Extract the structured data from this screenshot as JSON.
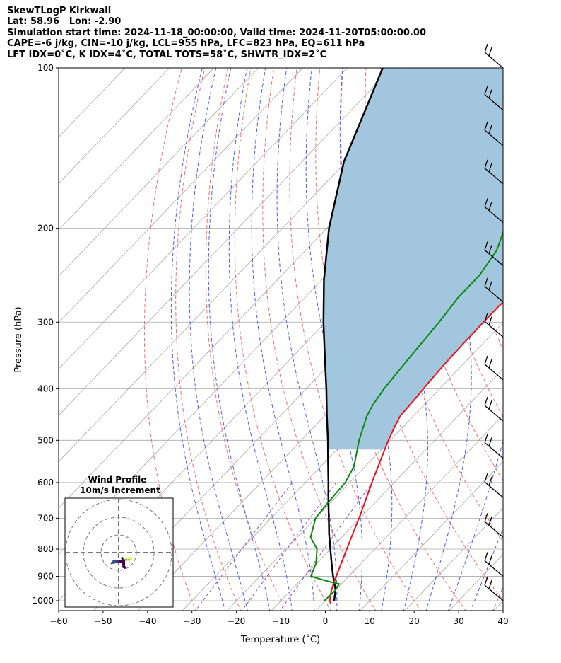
{
  "header": {
    "line1": "SkewTLogP Kirkwall",
    "line2": "Lat: 58.96   Lon: -2.90",
    "line3": "Simulation start time: 2024-11-18_00:00:00, Valid time: 2024-11-20T05:00:00.00",
    "line4": "CAPE=-6 j/kg, CIN=-10 j/kg, LCL=955 hPa, LFC=823 hPa, EQ=611 hPa",
    "line5": "LFT IDX=0˚C, K IDX=4˚C, TOTAL TOTS=58˚C, SHWTR_IDX=2˚C"
  },
  "chart_data": {
    "type": "line",
    "subtype": "skew-T log-P diagram",
    "xlabel": "Temperature (˚C)",
    "ylabel": "Pressure (hPa)",
    "xlim": [
      -60,
      40
    ],
    "ylim_pressure": [
      1040,
      100
    ],
    "x_scale": "skewed linear",
    "y_scale": "log (inverted)",
    "grid": true,
    "x_ticks": [
      "−60",
      "−50",
      "−40",
      "−30",
      "−20",
      "−10",
      "0",
      "10",
      "20",
      "30",
      "40"
    ],
    "x_tick_values": [
      -60,
      -50,
      -40,
      -30,
      -20,
      -10,
      0,
      10,
      20,
      30,
      40
    ],
    "y_ticks": [
      "100",
      "200",
      "300",
      "400",
      "500",
      "600",
      "700",
      "800",
      "900",
      "1000"
    ],
    "y_tick_values": [
      100,
      200,
      300,
      400,
      500,
      600,
      700,
      800,
      900,
      1000
    ],
    "colors": {
      "temperature": "#e8141c",
      "dewpoint": "#0a8a0a",
      "parcel": "#000000",
      "cape_fill": "#a2c6de",
      "dry_adiabat": "#f07070",
      "moist_adiabat": "#4a5ef0",
      "mixing_ratio": "#9a4ac8",
      "isotherm": "#a8a8a8"
    },
    "series": [
      {
        "role": "temperature",
        "points": [
          [
            1015,
            2.0
          ],
          [
            1000,
            1.0
          ],
          [
            960,
            -0.7
          ],
          [
            930,
            -1.8
          ],
          [
            900,
            -2.8
          ],
          [
            850,
            -4.5
          ],
          [
            800,
            -6.3
          ],
          [
            750,
            -8.2
          ],
          [
            700,
            -10.2
          ],
          [
            650,
            -12.5
          ],
          [
            600,
            -15.0
          ],
          [
            550,
            -17.6
          ],
          [
            500,
            -20.4
          ],
          [
            470,
            -22.0
          ],
          [
            450,
            -23.0
          ],
          [
            420,
            -23.3
          ],
          [
            390,
            -23.8
          ],
          [
            360,
            -24.2
          ],
          [
            330,
            -24.4
          ],
          [
            300,
            -24.5
          ],
          [
            280,
            -24.5
          ],
          [
            265,
            -24.0
          ],
          [
            245,
            -20.5
          ],
          [
            225,
            -17.5
          ],
          [
            205,
            -16.5
          ],
          [
            190,
            -16.4
          ],
          [
            170,
            -16.8
          ],
          [
            150,
            -17.4
          ],
          [
            130,
            -18.4
          ],
          [
            115,
            -19.5
          ],
          [
            100,
            -21.0
          ]
        ]
      },
      {
        "role": "dewpoint",
        "points": [
          [
            1000,
            -0.2
          ],
          [
            960,
            0.0
          ],
          [
            930,
            -0.5
          ],
          [
            920,
            -3.5
          ],
          [
            900,
            -8.5
          ],
          [
            850,
            -10.2
          ],
          [
            800,
            -13.0
          ],
          [
            760,
            -17.0
          ],
          [
            700,
            -20.0
          ],
          [
            660,
            -20.5
          ],
          [
            600,
            -21.0
          ],
          [
            560,
            -22.5
          ],
          [
            500,
            -27.0
          ],
          [
            450,
            -30.5
          ],
          [
            430,
            -31.5
          ],
          [
            400,
            -32.5
          ],
          [
            350,
            -33.5
          ],
          [
            300,
            -34.5
          ],
          [
            270,
            -35.5
          ],
          [
            245,
            -35.5
          ],
          [
            220,
            -37.0
          ],
          [
            200,
            -40.0
          ],
          [
            185,
            -41.0
          ],
          [
            160,
            -39.5
          ],
          [
            140,
            -38.5
          ],
          [
            120,
            -37.5
          ],
          [
            100,
            -36.5
          ]
        ]
      },
      {
        "role": "parcel",
        "points": [
          [
            1000,
            2.0
          ],
          [
            955,
            0.0
          ],
          [
            900,
            -3.5
          ],
          [
            850,
            -6.7
          ],
          [
            800,
            -10.0
          ],
          [
            750,
            -13.5
          ],
          [
            700,
            -17.0
          ],
          [
            650,
            -20.8
          ],
          [
            600,
            -24.8
          ],
          [
            550,
            -29.2
          ],
          [
            500,
            -34.0
          ],
          [
            450,
            -39.5
          ],
          [
            400,
            -45.5
          ],
          [
            350,
            -52.5
          ],
          [
            300,
            -60.5
          ],
          [
            250,
            -69.5
          ],
          [
            200,
            -79.5
          ],
          [
            150,
            -90.5
          ],
          [
            100,
            -102.0
          ]
        ]
      }
    ],
    "wind_barbs": {
      "pressure_levels": [
        100,
        120,
        140,
        165,
        195,
        235,
        275,
        320,
        385,
        460,
        540,
        640,
        760,
        900,
        1000
      ]
    },
    "hodograph": {
      "title": "Wind Profile",
      "subtitle": "10m/s increment",
      "points_uv": [
        [
          7,
          -3
        ],
        [
          6,
          -4
        ],
        [
          4,
          -4
        ],
        [
          2,
          -4.5
        ],
        [
          0,
          -5
        ],
        [
          -2,
          -5.5
        ],
        [
          -4,
          -6
        ],
        [
          -3,
          -5
        ],
        [
          -1,
          -5
        ],
        [
          1,
          -5
        ],
        [
          3,
          -4.5
        ],
        [
          3,
          -5.5
        ],
        [
          3,
          -7
        ],
        [
          2.5,
          -8
        ],
        [
          3.5,
          -8.5
        ],
        [
          2.5,
          -6.5
        ],
        [
          2,
          -3
        ]
      ]
    }
  }
}
